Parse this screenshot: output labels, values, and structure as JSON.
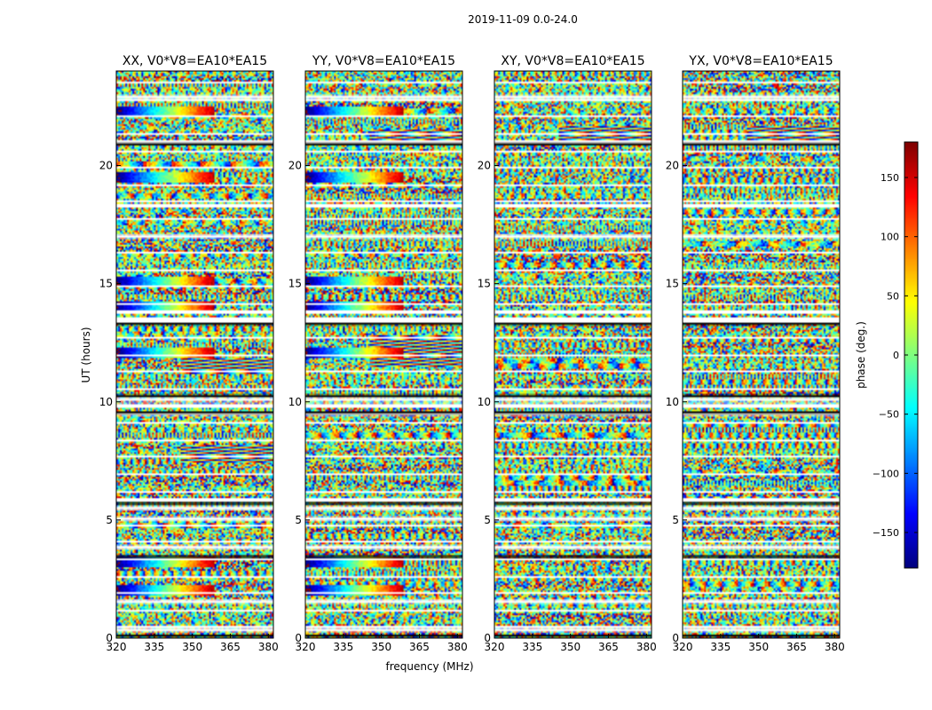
{
  "chart_data": {
    "type": "heatmap",
    "title": "2019-11-09 0.0-24.0",
    "xlabel": "frequency (MHz)",
    "ylabel": "UT (hours)",
    "xlim": [
      320,
      382
    ],
    "ylim": [
      0,
      24
    ],
    "xticks": [
      320,
      335,
      350,
      365,
      380
    ],
    "yticks": [
      0,
      5,
      10,
      15,
      20
    ],
    "panels": [
      {
        "title": "XX, V0*V8=EA10*EA15",
        "pol": "XX",
        "seed": 11,
        "strong": [
          2.0,
          3.2,
          12.1,
          14.0,
          15.1,
          19.5,
          22.3
        ],
        "slant": [
          7.8,
          11.5
        ]
      },
      {
        "title": "YY, V0*V8=EA10*EA15",
        "pol": "YY",
        "seed": 23,
        "strong": [
          2.0,
          3.2,
          12.1,
          14.0,
          15.1,
          19.5,
          22.3
        ],
        "slant": [
          11.8,
          12.5,
          21.2
        ]
      },
      {
        "title": "XY, V0*V8=EA10*EA15",
        "pol": "XY",
        "seed": 37,
        "strong": [],
        "slant": [
          21.3
        ]
      },
      {
        "title": "YX, V0*V8=EA10*EA15",
        "pol": "YX",
        "seed": 41,
        "strong": [],
        "slant": [
          21.3
        ]
      }
    ],
    "colorbar": {
      "label": "phase (deg.)",
      "range": [
        -180,
        180
      ],
      "ticks": [
        150,
        100,
        50,
        0,
        -50,
        -100,
        -150
      ],
      "colormap": "jet"
    },
    "flagged_bands_ut": [
      0.35,
      1.55,
      3.85,
      5.05,
      5.5,
      5.85,
      9.5,
      9.85,
      10.1,
      13.5,
      13.8,
      17.0,
      18.3,
      21.0,
      22.9
    ],
    "dark_bands_ut": [
      0.15,
      3.5,
      5.75,
      9.6,
      10.3,
      13.35,
      20.95
    ]
  }
}
